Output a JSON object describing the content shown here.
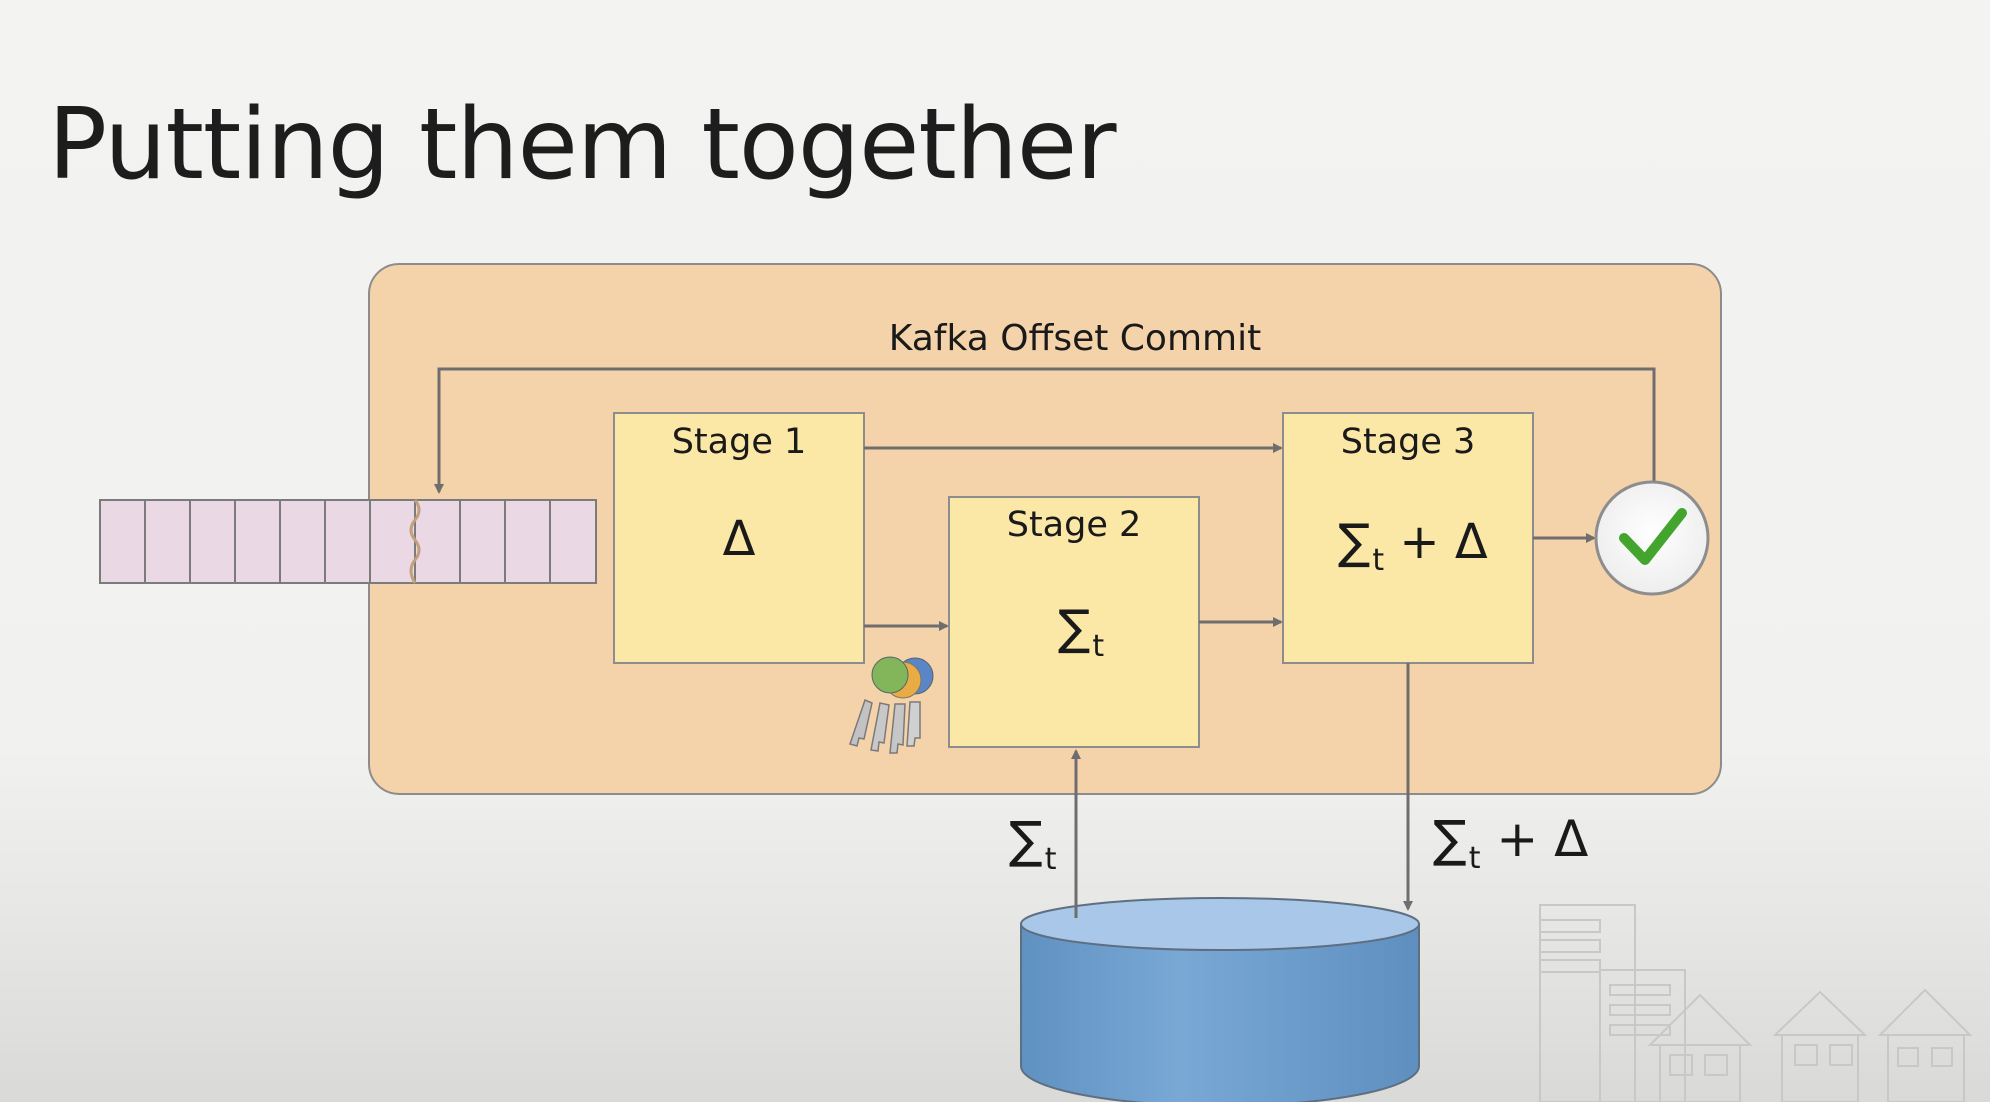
{
  "slide": {
    "title": "Putting them together"
  },
  "diagram": {
    "outer_label": "Kafka Offset Commit",
    "stages": [
      {
        "title": "Stage 1",
        "symbol": "Δ"
      },
      {
        "title": "Stage 2",
        "symbol": "∑",
        "subscript": "t"
      },
      {
        "title": "Stage 3",
        "symbol": "∑",
        "subscript": "t",
        "suffix": " + Δ"
      }
    ],
    "db_read_label": {
      "symbol": "∑",
      "subscript": "t"
    },
    "db_write_label": {
      "symbol": "∑",
      "subscript": "t",
      "suffix": " + Δ"
    },
    "colors": {
      "outer_panel": "#f5d3aa",
      "stage_box": "#fbe7a6",
      "queue_cell": "#ead8e4",
      "check": "#44a52e",
      "db_body": "#6e9fcd",
      "db_top": "#a9c7e8"
    }
  }
}
